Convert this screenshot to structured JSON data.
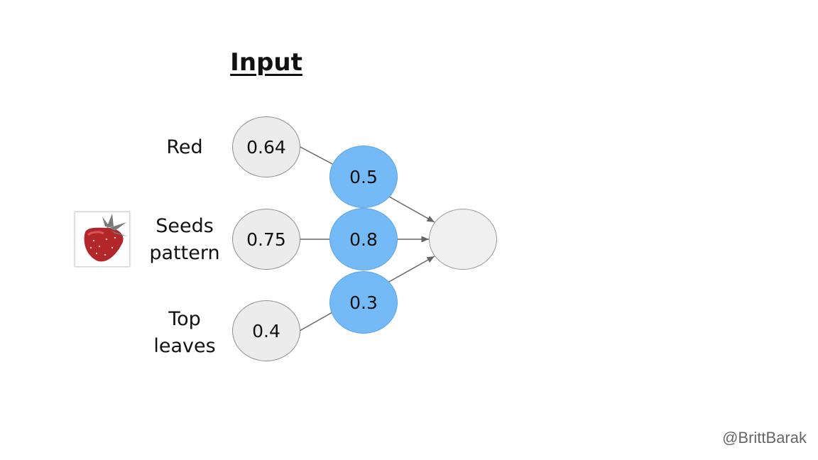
{
  "title": "Input",
  "labels": {
    "red": "Red",
    "seeds_line1": "Seeds",
    "seeds_line2": "pattern",
    "top_line1": "Top",
    "top_line2": "leaves"
  },
  "inputs": {
    "red": "0.64",
    "seeds": "0.75",
    "top": "0.4"
  },
  "weights": {
    "red": "0.5",
    "seeds": "0.8",
    "top": "0.3"
  },
  "output": "",
  "credit": "@BrittBarak",
  "colors": {
    "input_fill": "#ececec",
    "weight_fill": "#73baf6",
    "output_fill": "#f0f0f0",
    "strawberry": "#b3262a"
  },
  "icons": {
    "thumbnail": "strawberry-image"
  }
}
